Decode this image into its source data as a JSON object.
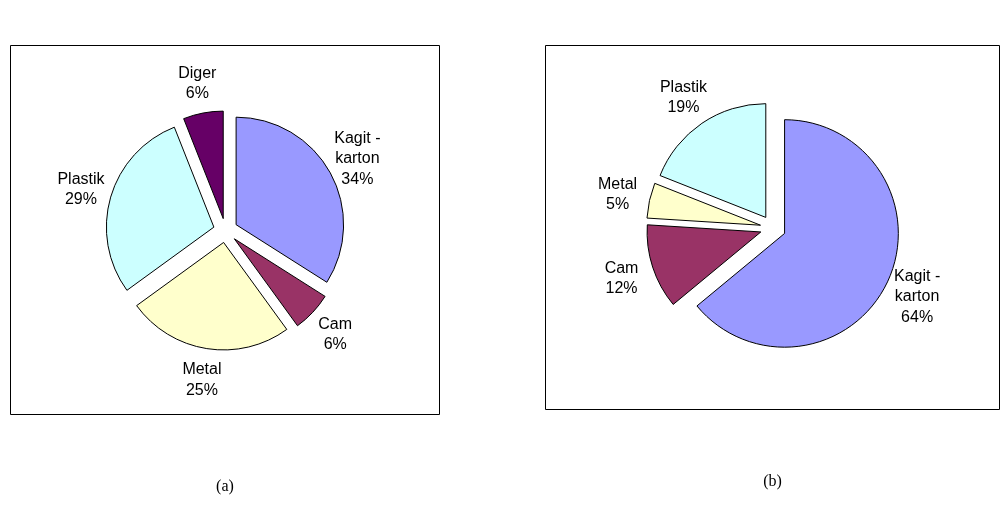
{
  "chart_data": [
    {
      "type": "pie",
      "categories": [
        "Kagit - karton",
        "Cam",
        "Metal",
        "Plastik",
        "Diger"
      ],
      "values": [
        34,
        6,
        25,
        29,
        6
      ],
      "colors": [
        "#9999ff",
        "#993366",
        "#ffffcc",
        "#ccffff",
        "#660066"
      ],
      "value_labels": [
        "34%",
        "6%",
        "25%",
        "29%",
        "6%"
      ],
      "annotations": [
        "(a)"
      ]
    },
    {
      "type": "pie",
      "categories": [
        "Kagit - karton",
        "Cam",
        "Metal",
        "Plastik"
      ],
      "values": [
        64,
        12,
        5,
        19
      ],
      "colors": [
        "#9999ff",
        "#993366",
        "#ffffcc",
        "#ccffff"
      ],
      "value_labels": [
        "64%",
        "12%",
        "5%",
        "19%"
      ],
      "annotations": [
        "(b)"
      ]
    }
  ]
}
